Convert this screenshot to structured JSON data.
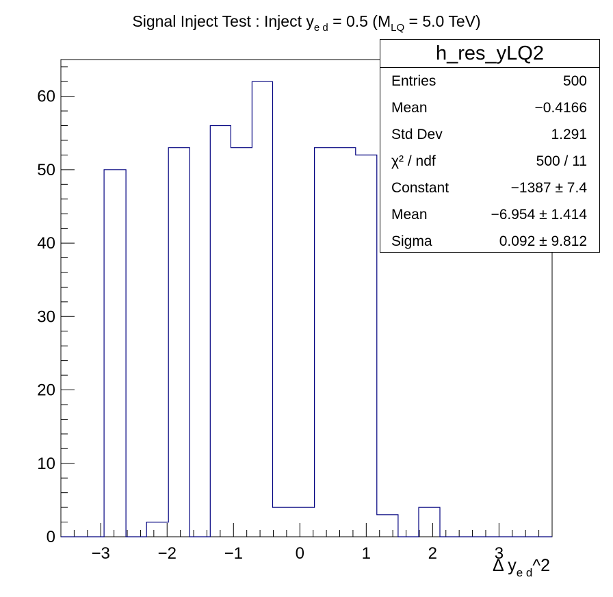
{
  "chart_data": {
    "type": "bar",
    "subtype": "histogram",
    "title_parts": {
      "pre": "Signal Inject Test : Inject y",
      "sub1": "e d",
      "mid": " = 0.5 (M",
      "sub2": "LQ",
      "post": " = 5.0 TeV)"
    },
    "xlabel_parts": {
      "pre": "Δ y",
      "sub": "e d",
      "post": "^2"
    },
    "xlim": [
      -3.6,
      3.8
    ],
    "ylim": [
      0,
      65
    ],
    "x_ticks": [
      -3,
      -2,
      -1,
      0,
      1,
      2,
      3
    ],
    "x_tick_labels": [
      "−3",
      "−2",
      "−1",
      "0",
      "1",
      "2",
      "3"
    ],
    "y_ticks": [
      0,
      10,
      20,
      30,
      40,
      50,
      60
    ],
    "y_tick_labels": [
      "0",
      "10",
      "20",
      "30",
      "40",
      "50",
      "60"
    ],
    "bin_edges": [
      -3.6,
      -3.3,
      -2.95,
      -2.62,
      -2.31,
      -1.98,
      -1.66,
      -1.35,
      -1.04,
      -0.72,
      -0.41,
      0.22,
      0.53,
      0.84,
      1.16,
      1.48,
      1.79,
      2.11,
      2.42,
      2.74,
      3.05,
      3.37,
      3.8
    ],
    "values": [
      0,
      0,
      50,
      0,
      2,
      53,
      0,
      56,
      53,
      62,
      4,
      53,
      53,
      52,
      3,
      0,
      4,
      0,
      0,
      0,
      0,
      0
    ],
    "grid": false,
    "line_color": "#00007f"
  },
  "stats": {
    "title": "h_res_yLQ2",
    "rows": [
      {
        "key": "Entries",
        "value": "500"
      },
      {
        "key": "Mean",
        "value": "−0.4166"
      },
      {
        "key": "Std Dev",
        "value": "1.291"
      },
      {
        "key": "χ² / ndf",
        "value": "500 / 11"
      },
      {
        "key": "Constant",
        "value": "−1387 ± 7.4"
      },
      {
        "key": "Mean",
        "value": "−6.954 ± 1.414"
      },
      {
        "key": "Sigma",
        "value": "0.092 ± 9.812"
      }
    ]
  }
}
